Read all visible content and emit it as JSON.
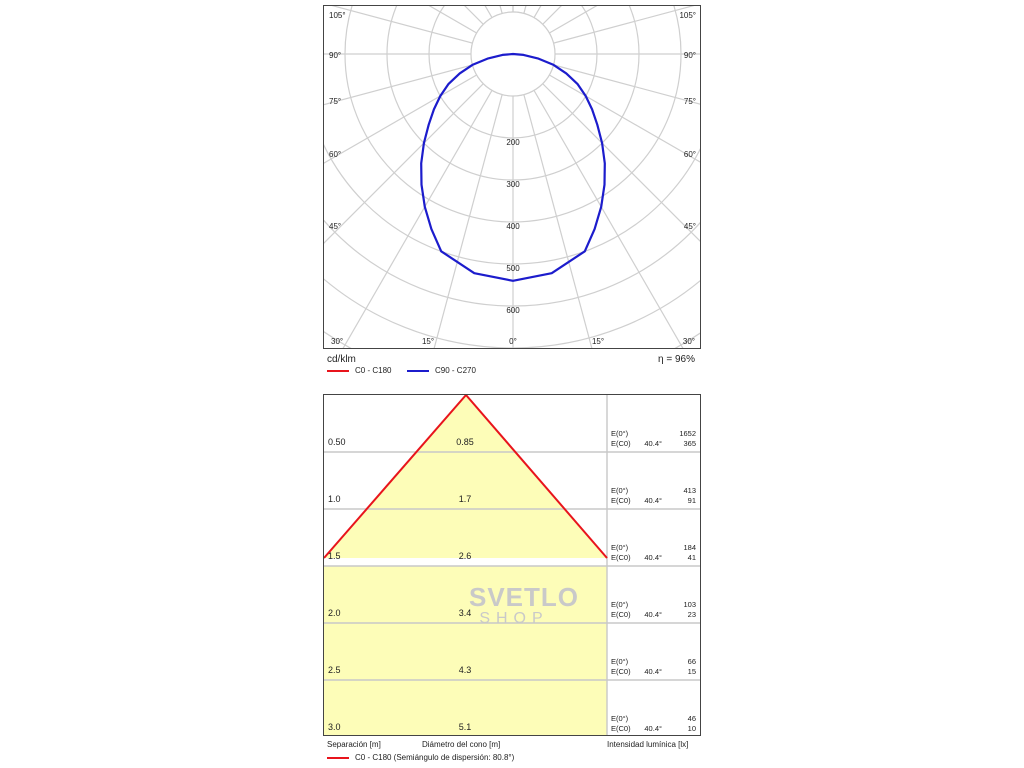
{
  "polar": {
    "unit_label": "cd/klm",
    "efficiency": "η = 96%",
    "angle_labels_top": [
      "105°",
      "90°",
      "75°",
      "60°",
      "45°"
    ],
    "angle_labels_bottom": [
      "30°",
      "15°",
      "0°",
      "15°",
      "30°"
    ],
    "radial_labels": [
      "200",
      "300",
      "400",
      "500",
      "600"
    ]
  },
  "legend": {
    "c0": {
      "label": "C0 - C180",
      "color": "#e8141c"
    },
    "c90": {
      "label": "C90 - C270",
      "color": "#1c1ccc"
    }
  },
  "cone": {
    "headers": {
      "separation": "Separación [m]",
      "diameter": "Diámetro del cono [m]",
      "intensity": "Intensidad lumínica [lx]"
    },
    "legend_label": "C0 - C180 (Semiángulo de dispersión: 80.8°)",
    "rows": [
      {
        "sep": "0.50",
        "dia": "0.85",
        "e0_label": "E(0°)",
        "e0": "1652",
        "ec_label": "E(C0)",
        "angle": "40.4°",
        "ec": "365"
      },
      {
        "sep": "1.0",
        "dia": "1.7",
        "e0_label": "E(0°)",
        "e0": "413",
        "ec_label": "E(C0)",
        "angle": "40.4°",
        "ec": "91"
      },
      {
        "sep": "1.5",
        "dia": "2.6",
        "e0_label": "E(0°)",
        "e0": "184",
        "ec_label": "E(C0)",
        "angle": "40.4°",
        "ec": "41"
      },
      {
        "sep": "2.0",
        "dia": "3.4",
        "e0_label": "E(0°)",
        "e0": "103",
        "ec_label": "E(C0)",
        "angle": "40.4°",
        "ec": "23"
      },
      {
        "sep": "2.5",
        "dia": "4.3",
        "e0_label": "E(0°)",
        "e0": "66",
        "ec_label": "E(C0)",
        "angle": "40.4°",
        "ec": "15"
      },
      {
        "sep": "3.0",
        "dia": "5.1",
        "e0_label": "E(0°)",
        "e0": "46",
        "ec_label": "E(C0)",
        "angle": "40.4°",
        "ec": "10"
      }
    ]
  },
  "watermark": {
    "line1": "SVETLO",
    "line2": "SHOP"
  },
  "chart_data": [
    {
      "type": "polar",
      "unit": "cd/klm",
      "efficiency_percent": 96,
      "radial_range": [
        0,
        700
      ],
      "radial_ticks": [
        200,
        300,
        400,
        500,
        600
      ],
      "angle_ticks_deg": [
        0,
        15,
        30,
        45,
        60,
        75,
        90,
        105
      ],
      "series": [
        {
          "name": "C90 - C270",
          "color": "#1c1ccc",
          "angles_deg": [
            0,
            10,
            20,
            25,
            30,
            35,
            40,
            45,
            50,
            55,
            60,
            65,
            70,
            75,
            80,
            85,
            90
          ],
          "values": [
            540,
            530,
            500,
            460,
            420,
            380,
            340,
            300,
            262,
            230,
            200,
            170,
            135,
            100,
            60,
            25,
            0
          ]
        }
      ]
    },
    {
      "type": "table",
      "title": "C0 - C180 (Semiángulo de dispersión: 80.8°)",
      "half_angle_deg": 80.8,
      "columns": [
        "Separación [m]",
        "Diámetro del cono [m]",
        "E(0°)",
        "E(C0) 40.4°"
      ],
      "rows": [
        [
          0.5,
          0.85,
          1652,
          365
        ],
        [
          1.0,
          1.7,
          413,
          91
        ],
        [
          1.5,
          2.6,
          184,
          41
        ],
        [
          2.0,
          3.4,
          103,
          23
        ],
        [
          2.5,
          4.3,
          66,
          15
        ],
        [
          3.0,
          5.1,
          46,
          10
        ]
      ]
    }
  ]
}
